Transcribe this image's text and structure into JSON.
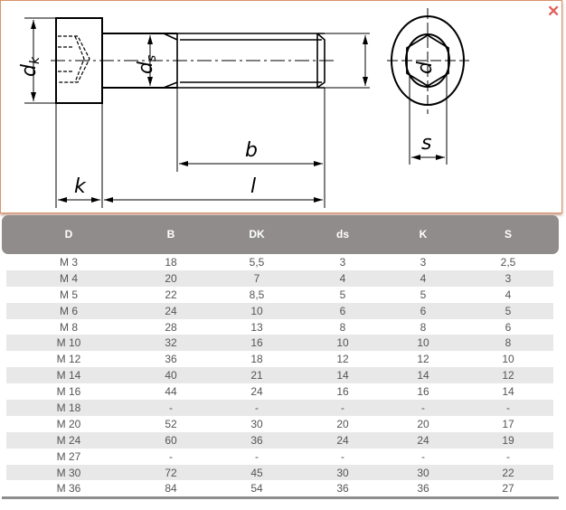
{
  "diagram": {
    "labels": {
      "dk": "d",
      "dk_sub": "k",
      "ds": "d",
      "ds_sub": "s",
      "d": "d",
      "b": "b",
      "l": "l",
      "k": "k",
      "s": "s"
    },
    "close_icon": "close-x-icon",
    "close_color": "#e0605a"
  },
  "table": {
    "headers": [
      "D",
      "B",
      "DK",
      "ds",
      "K",
      "S"
    ],
    "rows": [
      [
        "M 3",
        "18",
        "5,5",
        "3",
        "3",
        "2,5"
      ],
      [
        "M 4",
        "20",
        "7",
        "4",
        "4",
        "3"
      ],
      [
        "M 5",
        "22",
        "8,5",
        "5",
        "5",
        "4"
      ],
      [
        "M 6",
        "24",
        "10",
        "6",
        "6",
        "5"
      ],
      [
        "M 8",
        "28",
        "13",
        "8",
        "8",
        "6"
      ],
      [
        "M 10",
        "32",
        "16",
        "10",
        "10",
        "8"
      ],
      [
        "M 12",
        "36",
        "18",
        "12",
        "12",
        "10"
      ],
      [
        "M 14",
        "40",
        "21",
        "14",
        "14",
        "12"
      ],
      [
        "M 16",
        "44",
        "24",
        "16",
        "16",
        "14"
      ],
      [
        "M 18",
        "-",
        "-",
        "-",
        "-",
        "-"
      ],
      [
        "M 20",
        "52",
        "30",
        "20",
        "20",
        "17"
      ],
      [
        "M 24",
        "60",
        "36",
        "24",
        "24",
        "19"
      ],
      [
        "M 27",
        "-",
        "-",
        "-",
        "-",
        "-"
      ],
      [
        "M 30",
        "72",
        "45",
        "30",
        "30",
        "22"
      ],
      [
        "M 36",
        "84",
        "54",
        "36",
        "36",
        "27"
      ]
    ]
  }
}
